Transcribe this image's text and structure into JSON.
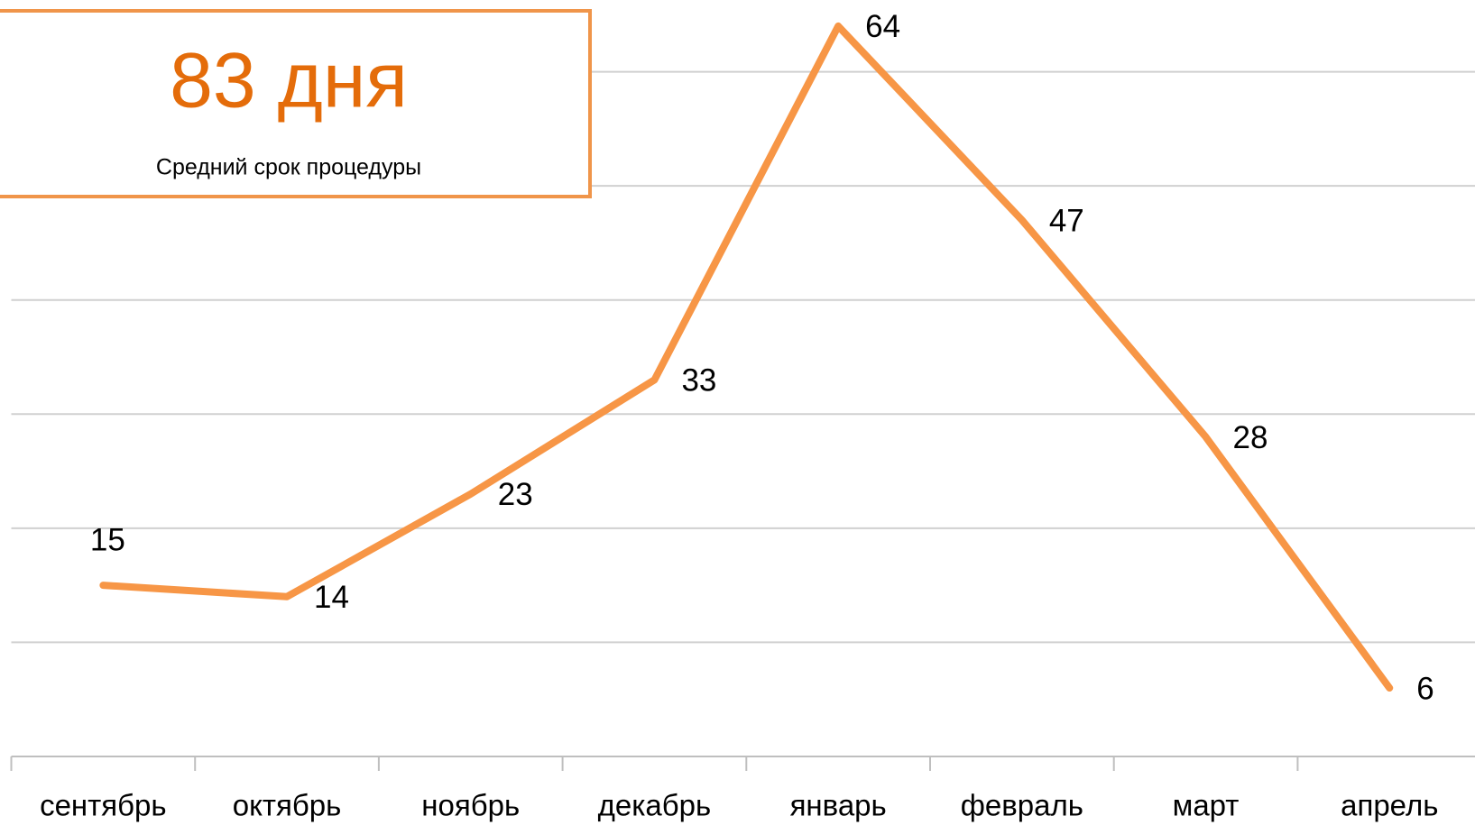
{
  "chart_data": {
    "type": "line",
    "title": "83 дня",
    "subtitle": "Средний срок процедуры",
    "categories": [
      "сентябрь",
      "октябрь",
      "ноябрь",
      "декабрь",
      "январь",
      "февраль",
      "март",
      "апрель"
    ],
    "series": [
      {
        "name": "Средний срок процедуры",
        "color": "#f79646",
        "values": [
          15,
          14,
          23,
          33,
          64,
          47,
          28,
          6
        ]
      }
    ],
    "ylim": [
      0,
      70
    ],
    "yticks": [
      0,
      10,
      20,
      30,
      40,
      50,
      60
    ],
    "grid": true,
    "legend": false
  }
}
